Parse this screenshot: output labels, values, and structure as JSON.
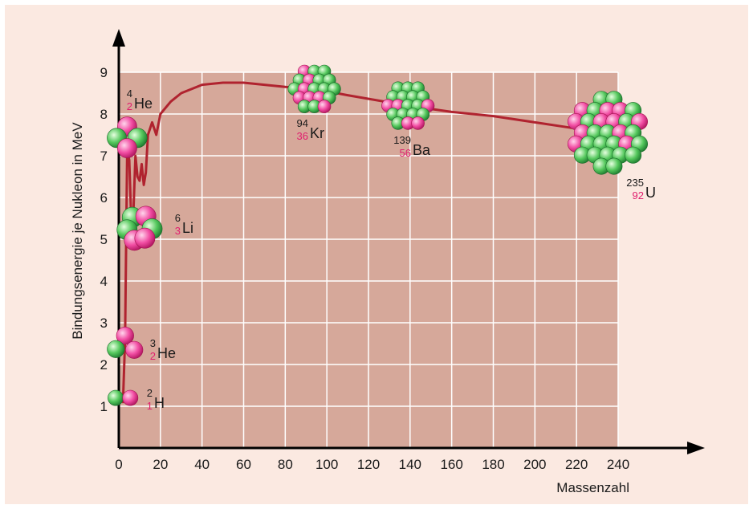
{
  "chart_data": {
    "type": "line",
    "title": "",
    "xlabel": "Massenzahl",
    "ylabel": "Bindungsenergie je Nukleon in MeV",
    "xlim": [
      0,
      240
    ],
    "ylim": [
      0,
      9
    ],
    "x_ticks": [
      "0",
      "20",
      "40",
      "60",
      "80",
      "100",
      "120",
      "140",
      "160",
      "180",
      "200",
      "220",
      "240"
    ],
    "y_ticks": [
      "1",
      "2",
      "3",
      "4",
      "5",
      "6",
      "7",
      "8",
      "9"
    ],
    "grid": true,
    "series": [
      {
        "points": [
          [
            2,
            1.1
          ],
          [
            3,
            2.6
          ],
          [
            4,
            7.1
          ],
          [
            5,
            6.9
          ],
          [
            6,
            5.4
          ],
          [
            7,
            5.6
          ],
          [
            8,
            7.0
          ],
          [
            9,
            6.5
          ],
          [
            10,
            6.4
          ],
          [
            11,
            6.8
          ],
          [
            12,
            6.3
          ],
          [
            13,
            6.6
          ],
          [
            14,
            7.5
          ],
          [
            16,
            7.8
          ],
          [
            18,
            7.5
          ],
          [
            20,
            8.0
          ],
          [
            25,
            8.3
          ],
          [
            30,
            8.5
          ],
          [
            40,
            8.7
          ],
          [
            50,
            8.75
          ],
          [
            60,
            8.75
          ],
          [
            70,
            8.7
          ],
          [
            80,
            8.65
          ],
          [
            94,
            8.6
          ],
          [
            110,
            8.45
          ],
          [
            139,
            8.2
          ],
          [
            160,
            8.05
          ],
          [
            180,
            7.95
          ],
          [
            200,
            7.8
          ],
          [
            220,
            7.65
          ],
          [
            235,
            7.55
          ]
        ]
      }
    ],
    "nuclides": [
      {
        "id": "h2",
        "mass": "2",
        "z": "1",
        "symbol": "H",
        "x": 2,
        "y": 1.2,
        "r": 0.32
      },
      {
        "id": "he3",
        "mass": "3",
        "z": "2",
        "symbol": "He",
        "x": 3,
        "y": 2.45,
        "r": 0.4
      },
      {
        "id": "he4",
        "mass": "4",
        "z": "2",
        "symbol": "He",
        "x": 4,
        "y": 7.45,
        "r": 0.45
      },
      {
        "id": "li6",
        "mass": "6",
        "z": "3",
        "symbol": "Li",
        "x": 10,
        "y": 5.25,
        "r": 0.5
      },
      {
        "id": "kr94",
        "mass": "94",
        "z": "36",
        "symbol": "Kr",
        "x": 94,
        "y": 8.6,
        "r": 0.58
      },
      {
        "id": "ba139",
        "mass": "139",
        "z": "56",
        "symbol": "Ba",
        "x": 139,
        "y": 8.2,
        "r": 0.7
      },
      {
        "id": "u235",
        "mass": "235",
        "z": "92",
        "symbol": "U",
        "x": 235,
        "y": 7.55,
        "r": 0.98
      }
    ],
    "colors": {
      "page_bg": "#fbe9e1",
      "plot_bg": "#d6a89a",
      "grid": "#ffffff",
      "curve": "#b0232f",
      "axis": "#000000",
      "proton": "#e91e8c",
      "neutron": "#2fae4a",
      "z_label": "#e01e6e"
    }
  }
}
